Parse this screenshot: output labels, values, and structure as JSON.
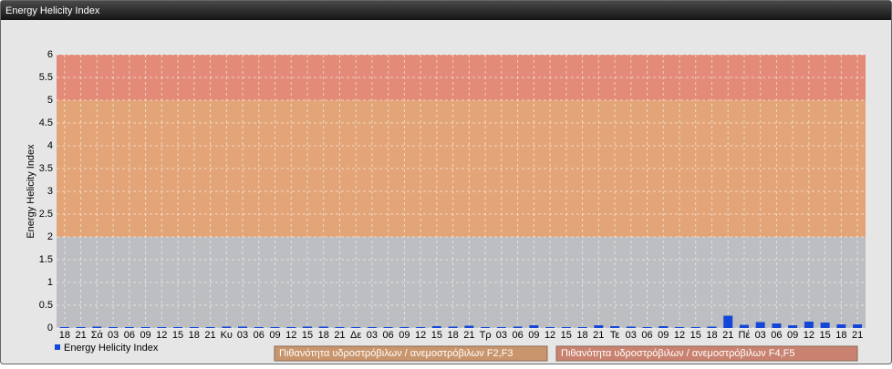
{
  "chart_data": {
    "type": "bar",
    "title": "Energy Helicity Index",
    "y_label": "Energy Helicity Index",
    "categories": [
      "18",
      "21",
      "Σά",
      "03",
      "06",
      "09",
      "12",
      "15",
      "18",
      "21",
      "Κυ",
      "03",
      "06",
      "09",
      "12",
      "15",
      "18",
      "21",
      "Δε",
      "03",
      "06",
      "09",
      "12",
      "15",
      "18",
      "21",
      "Τρ",
      "03",
      "06",
      "09",
      "12",
      "15",
      "18",
      "21",
      "Τε",
      "03",
      "06",
      "09",
      "12",
      "15",
      "18",
      "21",
      "Πέ",
      "03",
      "06",
      "09",
      "12",
      "15",
      "18",
      "21"
    ],
    "series": [
      {
        "name": "Energy Helicity Index",
        "color": "#1447d8",
        "values": [
          0.02,
          0.02,
          0.03,
          0.02,
          0.02,
          0.02,
          0.02,
          0.02,
          0.02,
          0.02,
          0.03,
          0.03,
          0.02,
          0.02,
          0.02,
          0.03,
          0.03,
          0.02,
          0.02,
          0.02,
          0.02,
          0.02,
          0.02,
          0.04,
          0.03,
          0.05,
          0.02,
          0.02,
          0.03,
          0.06,
          0.02,
          0.02,
          0.02,
          0.06,
          0.04,
          0.03,
          0.02,
          0.04,
          0.02,
          0.02,
          0.03,
          0.27,
          0.07,
          0.13,
          0.1,
          0.06,
          0.14,
          0.12,
          0.08,
          0.08
        ]
      }
    ],
    "bands": [
      {
        "from": 2,
        "to": 5,
        "color": "#e3a577",
        "legend_color": "#c8956c",
        "label": "Πιθανότητα υδροστρόβιλων / ανεμοστρόβιλων F2,F3"
      },
      {
        "from": 5,
        "to": 6,
        "color": "#e38b78",
        "legend_color": "#c9826f",
        "label": "Πιθανότητα υδροστρόβιλων / ανεμοστρόβιλων F4,F5"
      }
    ],
    "ylim": [
      0,
      6
    ],
    "yticks": [
      0,
      0.5,
      1,
      1.5,
      2,
      2.5,
      3,
      3.5,
      4,
      4.5,
      5,
      5.5,
      6
    ],
    "grid": true
  }
}
